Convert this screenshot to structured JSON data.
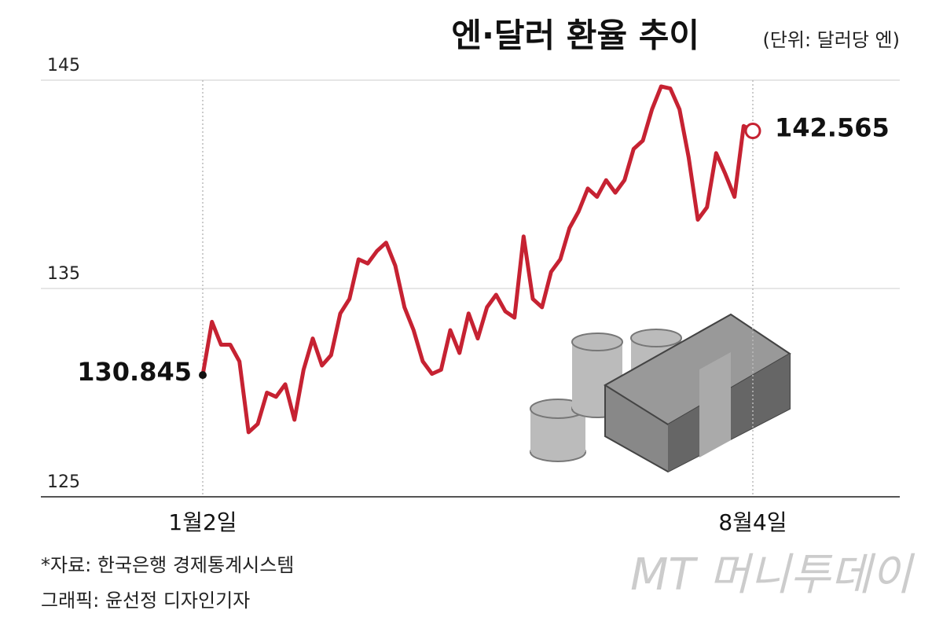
{
  "chart_data": {
    "type": "line",
    "title": "엔·달러 환율 추이",
    "subtitle": "(단위: 달러당 엔)",
    "source": "*자료: 한국은행 경제통계시스템",
    "credit": "그래픽: 윤선정 디자인기자",
    "watermark": "MT 머니투데이",
    "categories": [
      "1월2일",
      null,
      null,
      null,
      null,
      null,
      null,
      null,
      null,
      null,
      null,
      null,
      null,
      null,
      null,
      null,
      null,
      null,
      null,
      null,
      null,
      null,
      null,
      null,
      null,
      null,
      null,
      null,
      null,
      null,
      null,
      null,
      null,
      null,
      null,
      null,
      null,
      null,
      null,
      null,
      null,
      null,
      null,
      null,
      null,
      null,
      null,
      null,
      null,
      null,
      null,
      null,
      null,
      null,
      null,
      null,
      null,
      null,
      null,
      null,
      "8월4일"
    ],
    "values": [
      130.845,
      133.4,
      132.3,
      132.3,
      131.5,
      128.1,
      128.5,
      130.0,
      129.8,
      130.4,
      128.7,
      131.1,
      132.6,
      131.3,
      131.8,
      133.8,
      134.5,
      136.4,
      136.2,
      136.8,
      137.2,
      136.1,
      134.1,
      133.0,
      131.5,
      130.9,
      131.1,
      133.0,
      131.9,
      133.8,
      132.6,
      134.1,
      134.7,
      133.9,
      133.6,
      137.5,
      134.5,
      134.1,
      135.8,
      136.4,
      137.9,
      138.7,
      139.8,
      139.4,
      140.2,
      139.6,
      140.2,
      141.7,
      142.1,
      143.6,
      144.7,
      144.6,
      143.6,
      141.3,
      138.3,
      138.9,
      141.5,
      140.5,
      139.4,
      142.8,
      142.565
    ],
    "color": "#c62232",
    "ylim": [
      125,
      145
    ],
    "yticks": [
      125,
      135,
      145
    ],
    "grid": true
  }
}
